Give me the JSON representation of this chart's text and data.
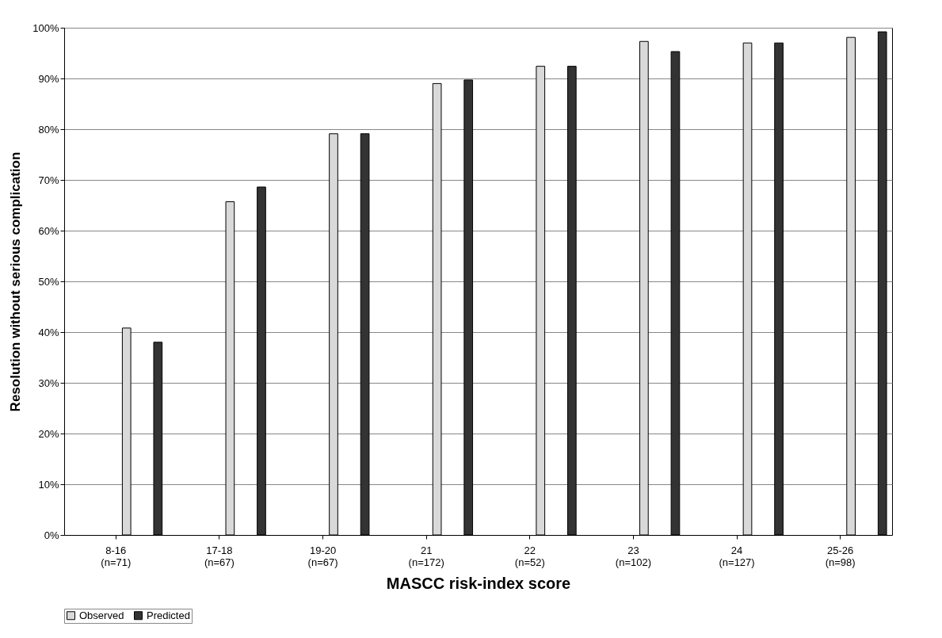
{
  "chart_data": {
    "type": "bar",
    "xlabel": "MASCC risk-index score",
    "ylabel": "Resolution without serious complication",
    "categories": [
      "8-16\n(n=71)",
      "17-18\n(n=67)",
      "19-20\n(n=67)",
      "21\n(n=172)",
      "22\n(n=52)",
      "23\n(n=102)",
      "24\n(n=127)",
      "25-26\n(n=98)"
    ],
    "series": [
      {
        "name": "Observed",
        "color": "#d9d9d9",
        "values": [
          40.8,
          65.7,
          79.1,
          89.0,
          92.4,
          97.3,
          97.0,
          98.1
        ]
      },
      {
        "name": "Predicted",
        "color": "#333333",
        "values": [
          38.0,
          68.6,
          79.1,
          89.7,
          92.4,
          95.3,
          97.0,
          99.2
        ]
      }
    ],
    "ylim": [
      0,
      100
    ],
    "yticks": [
      {
        "value": 0,
        "label": "0%"
      },
      {
        "value": 10,
        "label": "10%"
      },
      {
        "value": 20,
        "label": "20%"
      },
      {
        "value": 30,
        "label": "30%"
      },
      {
        "value": 40,
        "label": "40%"
      },
      {
        "value": 50,
        "label": "50%"
      },
      {
        "value": 60,
        "label": "60%"
      },
      {
        "value": 70,
        "label": "70%"
      },
      {
        "value": 80,
        "label": "80%"
      },
      {
        "value": 90,
        "label": "90%"
      },
      {
        "value": 100,
        "label": "100%"
      }
    ],
    "grid": "y",
    "legend": "bottom"
  }
}
